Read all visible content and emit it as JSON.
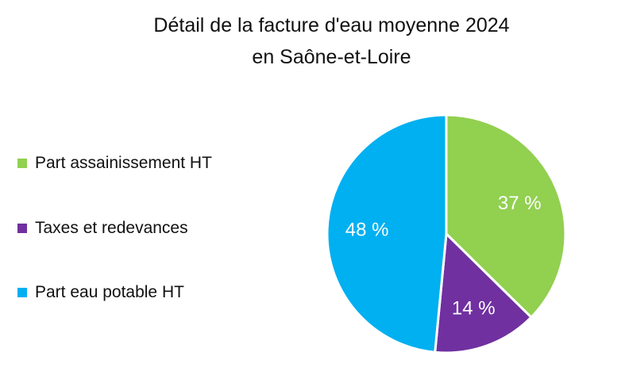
{
  "chart_data": {
    "type": "pie",
    "title": "Détail de la facture d'eau moyenne 2024",
    "subtitle": "en Saône-et-Loire",
    "legend_position": "left",
    "slices": [
      {
        "name": "Part assainissement HT",
        "value": 37,
        "label": "37 %",
        "color": "#92d050"
      },
      {
        "name": "Taxes et redevances",
        "value": 14,
        "label": "14 %",
        "color": "#7030a0"
      },
      {
        "name": "Part eau potable HT",
        "value": 48,
        "label": "48 %",
        "color": "#00b0f0"
      }
    ]
  }
}
